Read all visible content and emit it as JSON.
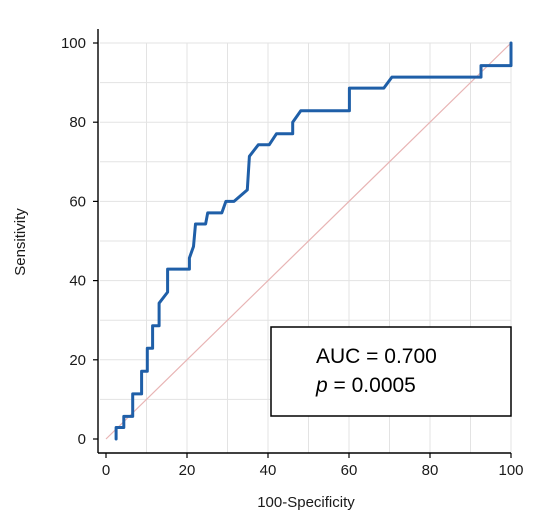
{
  "chart_data": {
    "type": "line",
    "xlabel": "100-Specificity",
    "ylabel": "Sensitivity",
    "xlim": [
      0,
      100
    ],
    "ylim": [
      0,
      100
    ],
    "x_ticks": [
      "0",
      "20",
      "40",
      "60",
      "80",
      "100"
    ],
    "y_ticks": [
      "0",
      "20",
      "40",
      "60",
      "80",
      "100"
    ],
    "grid": true,
    "legend_position": "bottom-right",
    "annotation": {
      "auc_text": "AUC = 0.700",
      "p_symbol": "p",
      "p_rest": " = 0.0005"
    },
    "series": [
      {
        "color": "#1f5fa8",
        "points": [
          [
            2.5,
            0
          ],
          [
            2.5,
            2.9
          ],
          [
            4.4,
            2.9
          ],
          [
            4.4,
            5.7
          ],
          [
            6.6,
            5.7
          ],
          [
            6.6,
            11.4
          ],
          [
            8.8,
            11.4
          ],
          [
            8.8,
            17.1
          ],
          [
            10.2,
            17.1
          ],
          [
            10.2,
            22.9
          ],
          [
            11.5,
            22.9
          ],
          [
            11.5,
            28.6
          ],
          [
            13.1,
            28.6
          ],
          [
            13.1,
            34.3
          ],
          [
            15.2,
            37.1
          ],
          [
            15.2,
            42.9
          ],
          [
            20.6,
            42.9
          ],
          [
            20.6,
            45.7
          ],
          [
            21.6,
            48.6
          ],
          [
            22.1,
            54.3
          ],
          [
            24.6,
            54.3
          ],
          [
            25.1,
            57.1
          ],
          [
            28.6,
            57.1
          ],
          [
            29.6,
            60
          ],
          [
            31.6,
            60
          ],
          [
            34.9,
            62.9
          ],
          [
            35.4,
            71.4
          ],
          [
            37.6,
            74.3
          ],
          [
            40.3,
            74.3
          ],
          [
            42.1,
            77.1
          ],
          [
            46.1,
            77.1
          ],
          [
            46.1,
            80
          ],
          [
            48.1,
            82.9
          ],
          [
            60.1,
            82.9
          ],
          [
            60.1,
            88.6
          ],
          [
            68.6,
            88.6
          ],
          [
            70.6,
            91.4
          ],
          [
            92.6,
            91.4
          ],
          [
            92.6,
            94.3
          ],
          [
            100,
            94.3
          ],
          [
            100,
            100
          ]
        ]
      },
      {
        "color": "#e8b4b4",
        "points": [
          [
            0,
            0
          ],
          [
            100,
            100
          ]
        ]
      }
    ]
  }
}
